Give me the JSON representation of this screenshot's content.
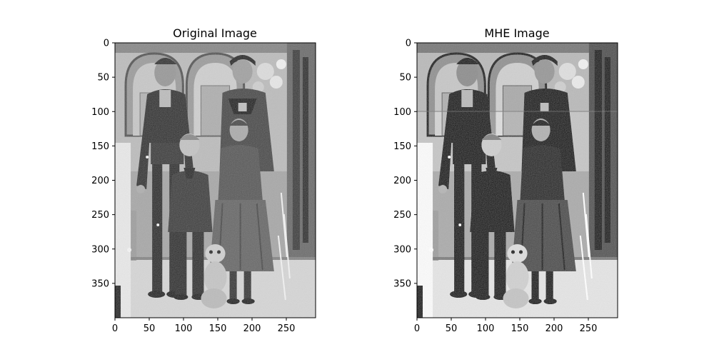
{
  "figure": {
    "panels": [
      {
        "title": "Original Image",
        "contrast": 1.0,
        "banding": false,
        "x_ticks": [
          "0",
          "50",
          "100",
          "150",
          "200",
          "250"
        ],
        "y_ticks": [
          "0",
          "50",
          "100",
          "150",
          "200",
          "250",
          "300",
          "350"
        ]
      },
      {
        "title": "MHE Image",
        "contrast": 1.35,
        "banding": true,
        "x_ticks": [
          "0",
          "50",
          "100",
          "150",
          "200",
          "250"
        ],
        "y_ticks": [
          "0",
          "50",
          "100",
          "150",
          "200",
          "250",
          "300",
          "350"
        ]
      }
    ],
    "axis_range": {
      "x": [
        0,
        293
      ],
      "y": [
        0,
        400
      ]
    }
  }
}
